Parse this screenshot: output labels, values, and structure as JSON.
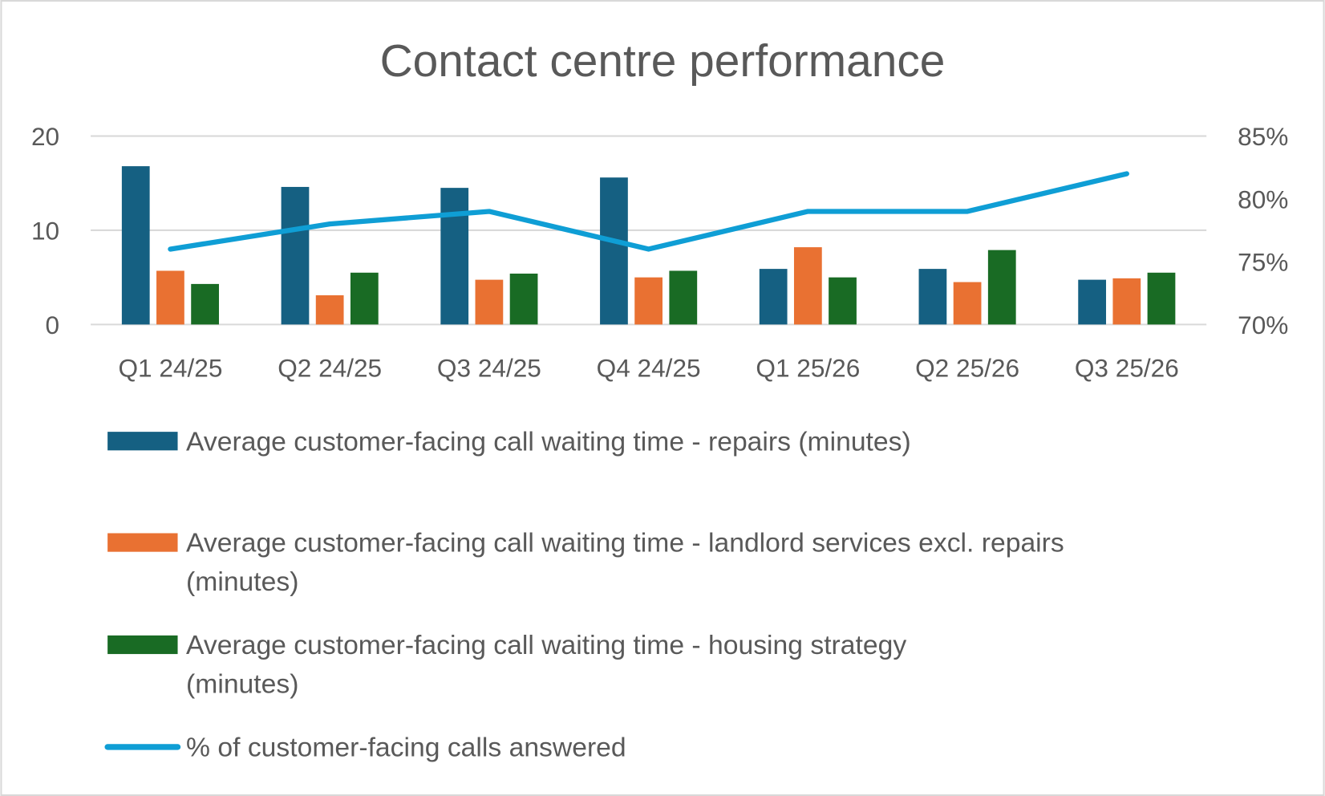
{
  "chart_data": {
    "type": "bar",
    "title": "Contact centre performance",
    "categories": [
      "Q1 24/25",
      "Q2 24/25",
      "Q3 24/25",
      "Q4 24/25",
      "Q1 25/26",
      "Q2 25/26",
      "Q3 25/26"
    ],
    "y_left": {
      "range": [
        0,
        20
      ],
      "ticks": [
        "0",
        "10",
        "20"
      ]
    },
    "y_right": {
      "range": [
        70,
        85
      ],
      "ticks": [
        "70%",
        "75%",
        "80%",
        "85%"
      ]
    },
    "grid": true,
    "legend_position": "bottom",
    "series": [
      {
        "name": "Average customer-facing call waiting time - repairs (minutes)",
        "type": "bar",
        "axis": "left",
        "color": "#156082",
        "values": [
          16.8,
          14.6,
          14.5,
          15.6,
          5.9,
          5.9,
          4.75
        ]
      },
      {
        "name": "Average customer-facing call waiting time - landlord services excl. repairs (minutes)",
        "type": "bar",
        "axis": "left",
        "color": "#E97132",
        "values": [
          5.7,
          3.1,
          4.75,
          5.0,
          8.2,
          4.5,
          4.9
        ]
      },
      {
        "name": "Average customer-facing call waiting time - housing strategy (minutes)",
        "type": "bar",
        "axis": "left",
        "color": "#196B24",
        "values": [
          4.3,
          5.5,
          5.4,
          5.7,
          5.0,
          7.9,
          5.5
        ]
      },
      {
        "name": "% of customer-facing calls answered",
        "type": "line",
        "axis": "right",
        "color": "#0F9ED5",
        "values": [
          76,
          78,
          79,
          76,
          79,
          79,
          82
        ]
      }
    ]
  }
}
